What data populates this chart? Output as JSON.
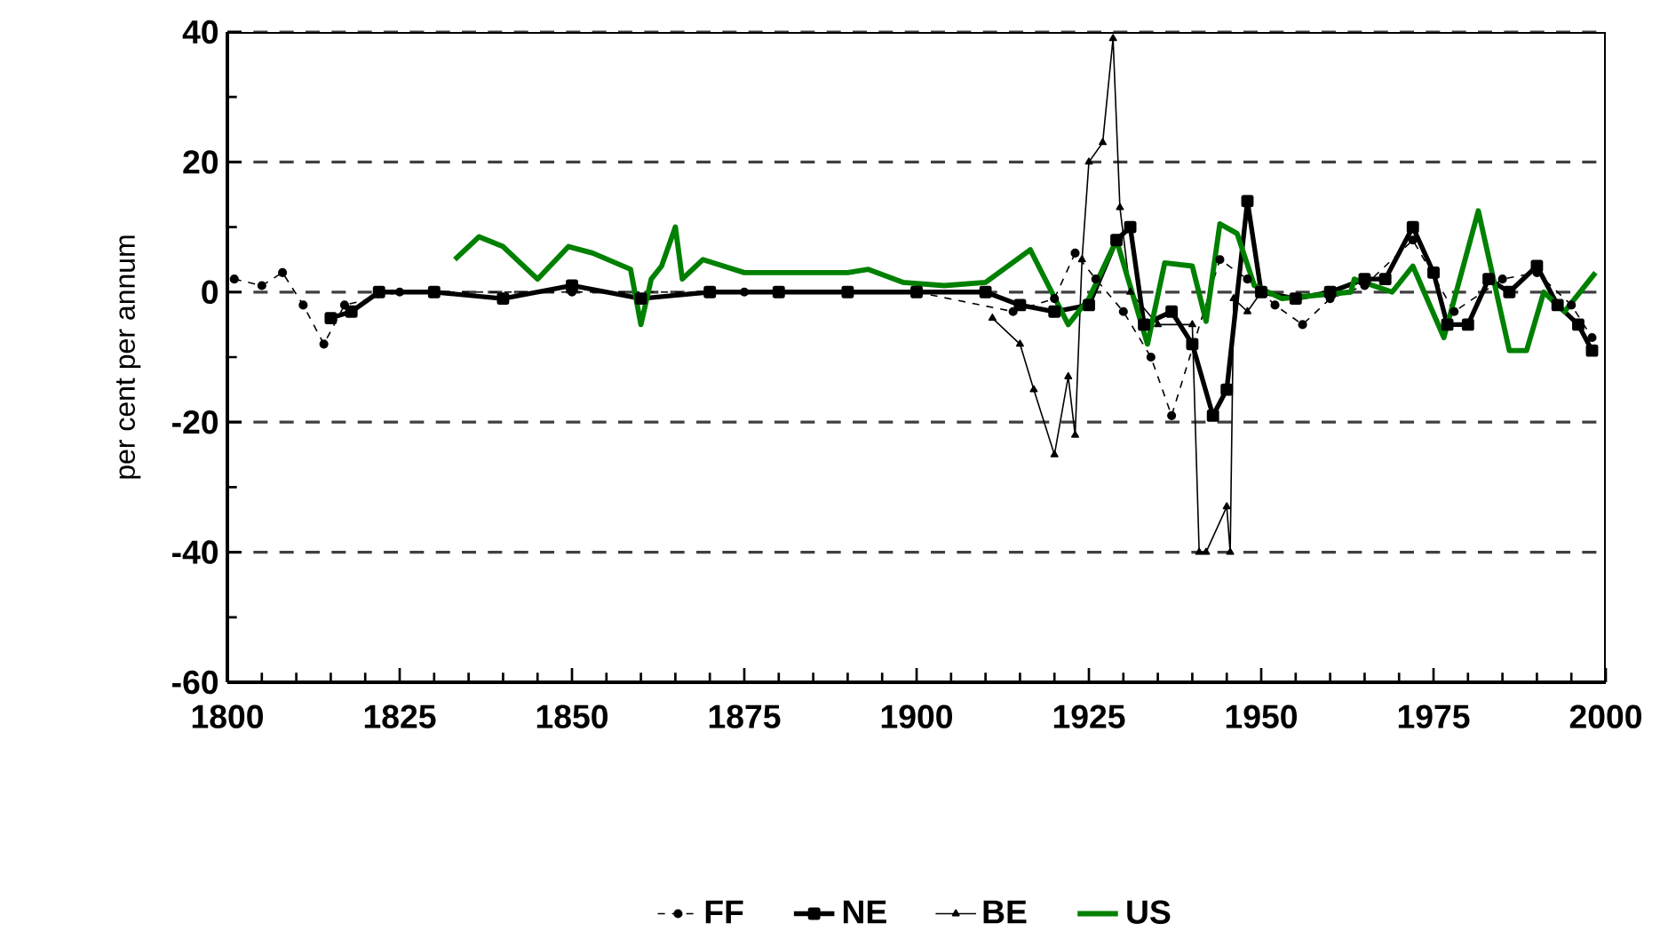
{
  "chart_data": {
    "type": "line",
    "ylabel": "per cent per annum",
    "xlim": [
      1800,
      2000
    ],
    "xticks": [
      1800,
      1825,
      1850,
      1875,
      1900,
      1925,
      1950,
      1975,
      2000
    ],
    "ylim": [
      -60,
      40
    ],
    "yticks": [
      -60,
      -40,
      -20,
      0,
      20,
      40
    ],
    "grid": "y",
    "legend": "bottom",
    "series": [
      {
        "name": "FF",
        "color": "#000000",
        "marker": "circle",
        "line_style": "dashed",
        "x": [
          1801,
          1805,
          1808,
          1811,
          1814,
          1817,
          1825,
          1850,
          1875,
          1900,
          1914,
          1920,
          1923,
          1926,
          1930,
          1934,
          1937,
          1940,
          1944,
          1948,
          1952,
          1956,
          1960,
          1965,
          1972,
          1978,
          1985,
          1990,
          1995,
          1998
        ],
        "values": [
          2,
          1,
          3,
          -2,
          -8,
          -2,
          0,
          0,
          0,
          0,
          -3,
          -1,
          6,
          2,
          -3,
          -10,
          -19,
          null,
          5,
          2,
          -2,
          -5,
          -1,
          1,
          8,
          -3,
          2,
          3,
          -2,
          -7
        ]
      },
      {
        "name": "NE",
        "color": "#000000",
        "marker": "square",
        "line_style": "solid",
        "x": [
          1815,
          1818,
          1822,
          1830,
          1840,
          1850,
          1860,
          1870,
          1880,
          1890,
          1900,
          1910,
          1915,
          1920,
          1925,
          1929,
          1931,
          1933,
          1937,
          1940,
          1943,
          1945,
          1948,
          1950,
          1955,
          1960,
          1965,
          1968,
          1972,
          1975,
          1977,
          1980,
          1983,
          1986,
          1990,
          1993,
          1996,
          1998
        ],
        "values": [
          -4,
          -3,
          0,
          0,
          -1,
          1,
          -1,
          0,
          0,
          0,
          0,
          0,
          -2,
          -3,
          -2,
          8,
          10,
          -5,
          -3,
          -8,
          -19,
          -15,
          14,
          0,
          -1,
          0,
          2,
          2,
          10,
          3,
          -5,
          -5,
          2,
          0,
          4,
          -2,
          -5,
          -9
        ]
      },
      {
        "name": "BE",
        "color": "#000000",
        "marker": "triangle",
        "line_style": "solid",
        "x": [
          1911,
          1915,
          1917,
          1920,
          1922,
          1923,
          1924,
          1925,
          1927,
          1928.5,
          1929.5,
          1931,
          1935,
          1940,
          1941,
          1942,
          1945,
          1945.5,
          1946,
          1948,
          1950
        ],
        "values": [
          -4,
          -8,
          -15,
          -25,
          -13,
          -22,
          5,
          20,
          23,
          39,
          13,
          0,
          -5,
          -5,
          -40,
          -40,
          -33,
          -40,
          -1,
          -3,
          0
        ]
      },
      {
        "name": "US",
        "color": "#008000",
        "marker": "none",
        "line_style": "solid",
        "x": [
          1833,
          1836.5,
          1840,
          1844,
          1845,
          1849.5,
          1853,
          1858.5,
          1860,
          1861.5,
          1863,
          1865,
          1866,
          1869,
          1875,
          1890,
          1893,
          1898,
          1904,
          1910,
          1916.5,
          1922,
          1925,
          1929,
          1933.5,
          1936,
          1940,
          1942,
          1944,
          1946.5,
          1949,
          1953,
          1963,
          1963.5,
          1969,
          1972,
          1976.5,
          1981.5,
          1986,
          1988.5,
          1991,
          1994,
          1998.5
        ],
        "values": [
          5,
          8.5,
          7,
          3,
          2,
          7,
          6,
          3.5,
          -5,
          2,
          4,
          10,
          2,
          5,
          3,
          3,
          3.5,
          1.5,
          1,
          1.5,
          6.5,
          -5,
          -1,
          8,
          -8,
          4.5,
          4,
          -4.5,
          10.5,
          9,
          1,
          -1,
          0,
          2,
          0,
          4,
          -7,
          12.5,
          -9,
          -9,
          0,
          -3,
          3
        ]
      }
    ]
  }
}
